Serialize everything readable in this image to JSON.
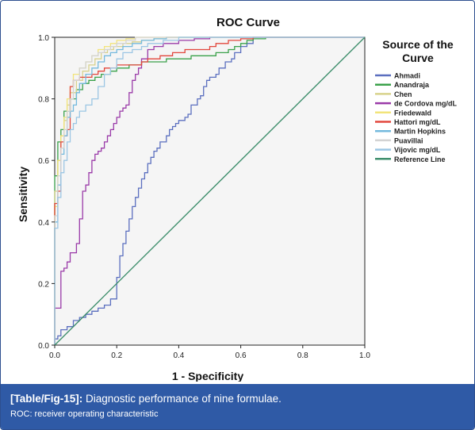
{
  "caption": {
    "label": "[Table/Fig-15]:",
    "text": " Diagnostic performance of nine formulae.",
    "note": "ROC: receiver operating characteristic"
  },
  "chart_data": {
    "type": "line",
    "title": "ROC Curve",
    "xlabel": "1 - Specificity",
    "ylabel": "Sensitivity",
    "xlim": [
      0,
      1
    ],
    "ylim": [
      0,
      1
    ],
    "xticks": [
      "0.0",
      "0.2",
      "0.4",
      "0.6",
      "0.8",
      "1.0"
    ],
    "yticks": [
      "0.0",
      "0.2",
      "0.4",
      "0.6",
      "0.8",
      "1.0"
    ],
    "legend_title": "Source of the Curve",
    "legend_position": "right",
    "grid": false,
    "series": [
      {
        "name": "Ahmadi",
        "color": "#5b6fbf",
        "step": true,
        "x": [
          0,
          0.01,
          0.02,
          0.04,
          0.06,
          0.08,
          0.1,
          0.12,
          0.14,
          0.16,
          0.18,
          0.2,
          0.21,
          0.22,
          0.23,
          0.24,
          0.25,
          0.26,
          0.27,
          0.28,
          0.29,
          0.3,
          0.31,
          0.32,
          0.33,
          0.34,
          0.36,
          0.37,
          0.38,
          0.39,
          0.4,
          0.42,
          0.43,
          0.44,
          0.46,
          0.47,
          0.48,
          0.49,
          0.5,
          0.52,
          0.53,
          0.55,
          0.57,
          0.58,
          0.6,
          0.62,
          0.64,
          0.66,
          1.0
        ],
        "y": [
          0,
          0.02,
          0.03,
          0.05,
          0.06,
          0.08,
          0.09,
          0.1,
          0.11,
          0.12,
          0.13,
          0.15,
          0.22,
          0.29,
          0.33,
          0.37,
          0.41,
          0.45,
          0.48,
          0.51,
          0.54,
          0.56,
          0.59,
          0.61,
          0.63,
          0.64,
          0.66,
          0.68,
          0.7,
          0.71,
          0.72,
          0.73,
          0.74,
          0.75,
          0.78,
          0.8,
          0.81,
          0.84,
          0.86,
          0.87,
          0.88,
          0.9,
          0.92,
          0.93,
          0.95,
          0.97,
          0.98,
          1.0,
          1.0
        ]
      },
      {
        "name": "Anandraja",
        "color": "#3aa14a",
        "step": true,
        "x": [
          0,
          0.01,
          0.02,
          0.03,
          0.05,
          0.07,
          0.09,
          0.11,
          0.13,
          0.15,
          0.18,
          0.2,
          0.24,
          0.28,
          0.32,
          0.36,
          0.4,
          0.44,
          0.48,
          0.52,
          0.56,
          0.58,
          0.6,
          0.62,
          0.64,
          0.68,
          0.72,
          1.0
        ],
        "y": [
          0,
          0.55,
          0.66,
          0.7,
          0.76,
          0.8,
          0.83,
          0.85,
          0.86,
          0.87,
          0.88,
          0.89,
          0.9,
          0.91,
          0.92,
          0.92,
          0.93,
          0.93,
          0.94,
          0.94,
          0.95,
          0.96,
          0.97,
          0.98,
          0.99,
          0.995,
          1.0,
          1.0
        ]
      },
      {
        "name": "Chen",
        "color": "#d8d28c",
        "step": true,
        "x": [
          0,
          0.01,
          0.02,
          0.03,
          0.04,
          0.05,
          0.07,
          0.09,
          0.11,
          0.13,
          0.15,
          0.17,
          0.19,
          0.22,
          0.25,
          0.28,
          0.32,
          0.36,
          0.4,
          0.45,
          0.5,
          1.0
        ],
        "y": [
          0,
          0.5,
          0.6,
          0.68,
          0.73,
          0.78,
          0.82,
          0.86,
          0.89,
          0.91,
          0.93,
          0.95,
          0.96,
          0.97,
          0.98,
          0.985,
          0.99,
          0.995,
          1.0,
          1.0,
          1.0,
          1.0
        ]
      },
      {
        "name": "de Cordova mg/dL",
        "color": "#9a3aa8",
        "step": true,
        "x": [
          0,
          0.02,
          0.03,
          0.04,
          0.05,
          0.06,
          0.07,
          0.08,
          0.09,
          0.1,
          0.11,
          0.12,
          0.13,
          0.14,
          0.15,
          0.16,
          0.17,
          0.18,
          0.19,
          0.2,
          0.21,
          0.22,
          0.23,
          0.24,
          0.25,
          0.26,
          0.27,
          0.28,
          0.3,
          0.32,
          0.35,
          0.4,
          0.45,
          0.5,
          0.6,
          0.7,
          0.8,
          1.0
        ],
        "y": [
          0,
          0.12,
          0.24,
          0.25,
          0.27,
          0.3,
          0.3,
          0.33,
          0.41,
          0.5,
          0.52,
          0.56,
          0.6,
          0.62,
          0.63,
          0.64,
          0.66,
          0.68,
          0.7,
          0.72,
          0.74,
          0.76,
          0.77,
          0.78,
          0.82,
          0.86,
          0.88,
          0.9,
          0.93,
          0.96,
          0.97,
          0.98,
          0.99,
          0.995,
          1.0,
          1.0,
          1.0,
          1.0
        ]
      },
      {
        "name": "Friedewald",
        "color": "#f2e47a",
        "step": true,
        "x": [
          0,
          0.01,
          0.02,
          0.03,
          0.04,
          0.05,
          0.06,
          0.08,
          0.1,
          0.12,
          0.14,
          0.16,
          0.18,
          0.2,
          0.23,
          0.26,
          0.3,
          0.35,
          0.4,
          1.0
        ],
        "y": [
          0,
          0.45,
          0.6,
          0.68,
          0.74,
          0.8,
          0.84,
          0.88,
          0.9,
          0.92,
          0.94,
          0.96,
          0.97,
          0.98,
          0.99,
          0.995,
          1.0,
          1.0,
          1.0,
          1.0
        ]
      },
      {
        "name": "Hattori mg/dL",
        "color": "#e2463c",
        "step": true,
        "x": [
          0,
          0.01,
          0.02,
          0.03,
          0.04,
          0.05,
          0.06,
          0.07,
          0.08,
          0.1,
          0.12,
          0.14,
          0.16,
          0.2,
          0.24,
          0.28,
          0.3,
          0.34,
          0.38,
          0.42,
          0.46,
          0.5,
          0.52,
          0.56,
          0.6,
          0.64,
          0.68,
          0.72,
          1.0
        ],
        "y": [
          0,
          0.46,
          0.5,
          0.66,
          0.68,
          0.7,
          0.84,
          0.86,
          0.86,
          0.87,
          0.87,
          0.88,
          0.89,
          0.9,
          0.91,
          0.91,
          0.92,
          0.93,
          0.94,
          0.95,
          0.96,
          0.96,
          0.97,
          0.98,
          0.99,
          0.995,
          1.0,
          1.0,
          1.0
        ]
      },
      {
        "name": "Martin Hopkins",
        "color": "#74b9dd",
        "step": true,
        "x": [
          0,
          0.01,
          0.02,
          0.03,
          0.04,
          0.05,
          0.06,
          0.07,
          0.08,
          0.1,
          0.12,
          0.14,
          0.16,
          0.18,
          0.2,
          0.22,
          0.25,
          0.28,
          0.32,
          0.36,
          0.4,
          0.45,
          1.0
        ],
        "y": [
          0,
          0.4,
          0.52,
          0.62,
          0.68,
          0.74,
          0.76,
          0.78,
          0.82,
          0.85,
          0.88,
          0.9,
          0.92,
          0.94,
          0.95,
          0.96,
          0.97,
          0.98,
          0.99,
          0.995,
          1.0,
          1.0,
          1.0
        ]
      },
      {
        "name": "Puavillai",
        "color": "#d3d3d3",
        "step": true,
        "x": [
          0,
          0.01,
          0.02,
          0.03,
          0.04,
          0.05,
          0.06,
          0.08,
          0.1,
          0.12,
          0.14,
          0.16,
          0.18,
          0.2,
          0.23,
          0.26,
          0.3,
          0.35,
          0.4,
          1.0
        ],
        "y": [
          0,
          0.42,
          0.55,
          0.64,
          0.7,
          0.76,
          0.8,
          0.86,
          0.9,
          0.92,
          0.94,
          0.95,
          0.96,
          0.97,
          0.98,
          0.99,
          1.0,
          1.0,
          1.0,
          1.0
        ]
      },
      {
        "name": "Vijovic mg/dL",
        "color": "#9cc6e4",
        "step": true,
        "x": [
          0,
          0.01,
          0.02,
          0.03,
          0.04,
          0.05,
          0.06,
          0.07,
          0.08,
          0.1,
          0.12,
          0.14,
          0.16,
          0.18,
          0.2,
          0.22,
          0.25,
          0.28,
          0.3,
          0.35,
          0.4,
          0.5,
          1.0
        ],
        "y": [
          0,
          0.38,
          0.48,
          0.56,
          0.6,
          0.66,
          0.7,
          0.72,
          0.74,
          0.76,
          0.78,
          0.8,
          0.84,
          0.88,
          0.9,
          0.93,
          0.95,
          0.96,
          0.97,
          0.98,
          0.99,
          1.0,
          1.0
        ]
      },
      {
        "name": "Reference Line",
        "color": "#3f8f6d",
        "step": false,
        "x": [
          0,
          1
        ],
        "y": [
          0,
          1
        ]
      }
    ]
  }
}
